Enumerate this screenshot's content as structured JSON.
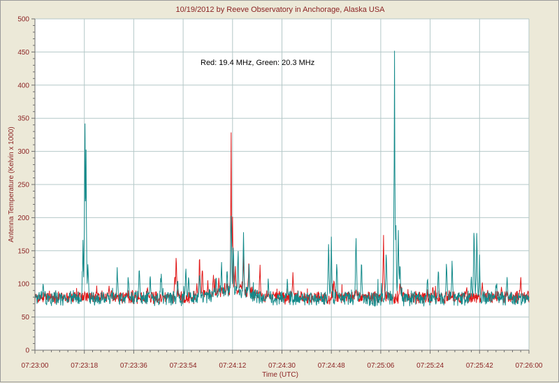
{
  "chart_data": {
    "type": "line",
    "title": "10/19/2012  by  Reeve Observatory  in  Anchorage, Alaska  USA",
    "annotation": "Red: 19.4 MHz, Green: 20.3 MHz",
    "xlabel": "Time (UTC)",
    "ylabel": "Antenna Temperature (Kelvin x 1000)",
    "xlim_seconds": [
      0,
      180
    ],
    "ylim": [
      0,
      500
    ],
    "y_ticks": [
      0,
      50,
      100,
      150,
      200,
      250,
      300,
      350,
      400,
      450,
      500
    ],
    "x_tick_labels": [
      "07:23:00",
      "07:23:18",
      "07:23:36",
      "07:23:54",
      "07:24:12",
      "07:24:30",
      "07:24:48",
      "07:25:06",
      "07:25:24",
      "07:25:42",
      "07:26:00"
    ],
    "grid": true,
    "colors": {
      "plot_bg": "#ffffff",
      "grid": "#b4c8c8",
      "red": "#e01818",
      "green": "#138a8a",
      "text": "#8b2323"
    },
    "series": [
      {
        "name": "Red",
        "color": "#e01818",
        "baseline": 80,
        "noise": 8,
        "peaks": [
          [
            27,
            100
          ],
          [
            41,
            100
          ],
          [
            51,
            125
          ],
          [
            51.5,
            160
          ],
          [
            59,
            105
          ],
          [
            63,
            110
          ],
          [
            60,
            160
          ],
          [
            61,
            130
          ],
          [
            65,
            125
          ],
          [
            67,
            115
          ],
          [
            70,
            110
          ],
          [
            71.5,
            345
          ],
          [
            72,
            235
          ],
          [
            73,
            140
          ],
          [
            76,
            165
          ],
          [
            78,
            155
          ],
          [
            82,
            135
          ],
          [
            94,
            120
          ],
          [
            109,
            115
          ],
          [
            117,
            95
          ],
          [
            127,
            190
          ],
          [
            133,
            110
          ],
          [
            145,
            100
          ],
          [
            163,
            110
          ],
          [
            170,
            100
          ],
          [
            177,
            120
          ]
        ]
      },
      {
        "name": "Green",
        "color": "#138a8a",
        "baseline": 78,
        "noise": 9,
        "peaks": [
          [
            3,
            110
          ],
          [
            17.5,
            175
          ],
          [
            18.2,
            405
          ],
          [
            18.6,
            370
          ],
          [
            19.3,
            150
          ],
          [
            30,
            135
          ],
          [
            34,
            125
          ],
          [
            38,
            140
          ],
          [
            42,
            120
          ],
          [
            46,
            125
          ],
          [
            52,
            115
          ],
          [
            55,
            135
          ],
          [
            56,
            120
          ],
          [
            60,
            130
          ],
          [
            66,
            120
          ],
          [
            68,
            150
          ],
          [
            70,
            145
          ],
          [
            71.5,
            265
          ],
          [
            72.3,
            195
          ],
          [
            74,
            185
          ],
          [
            76,
            190
          ],
          [
            78,
            140
          ],
          [
            85,
            110
          ],
          [
            92,
            105
          ],
          [
            107,
            185
          ],
          [
            108,
            175
          ],
          [
            110,
            150
          ],
          [
            117,
            200
          ],
          [
            119,
            145
          ],
          [
            128,
            175
          ],
          [
            131,
            500
          ],
          [
            131.5,
            210
          ],
          [
            132.4,
            220
          ],
          [
            133,
            150
          ],
          [
            143,
            120
          ],
          [
            147,
            135
          ],
          [
            150,
            150
          ],
          [
            152,
            145
          ],
          [
            159,
            120
          ],
          [
            160,
            205
          ],
          [
            161,
            195
          ],
          [
            162,
            145
          ],
          [
            168,
            110
          ],
          [
            172,
            120
          ]
        ]
      }
    ]
  }
}
